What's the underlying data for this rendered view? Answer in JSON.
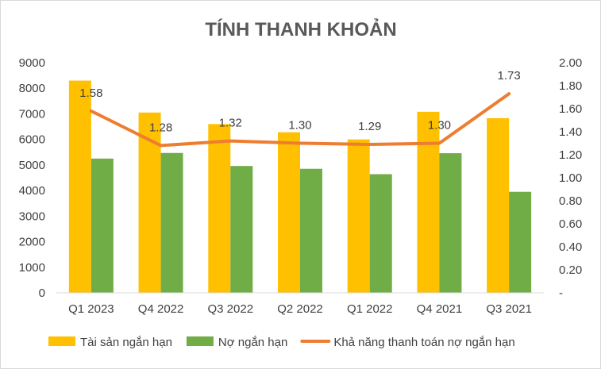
{
  "chart_data": {
    "type": "bar",
    "title": "TÍNH THANH KHOẢN",
    "categories": [
      "Q1 2023",
      "Q4 2022",
      "Q3 2022",
      "Q2 2022",
      "Q1 2022",
      "Q4 2021",
      "Q3 2021"
    ],
    "series": [
      {
        "name": "Tài sản ngắn hạn",
        "type": "bar",
        "axis": "left",
        "color": "#FFC000",
        "values": [
          8300,
          7050,
          6600,
          6280,
          6000,
          7080,
          6830
        ]
      },
      {
        "name": "Nợ ngắn hạn",
        "type": "bar",
        "axis": "left",
        "color": "#70AD47",
        "values": [
          5250,
          5470,
          4960,
          4850,
          4640,
          5460,
          3950
        ]
      },
      {
        "name": "Khả năng thanh toán nợ ngắn hạn",
        "type": "line",
        "axis": "right",
        "color": "#ED7D31",
        "values": [
          1.58,
          1.28,
          1.32,
          1.3,
          1.29,
          1.3,
          1.73
        ],
        "labels": [
          "1.58",
          "1.28",
          "1.32",
          "1.30",
          "1.29",
          "1.30",
          "1.73"
        ]
      }
    ],
    "y_left": {
      "min": 0,
      "max": 9000,
      "step": 1000,
      "ticks": [
        "0",
        "1000",
        "2000",
        "3000",
        "4000",
        "5000",
        "6000",
        "7000",
        "8000",
        "9000"
      ]
    },
    "y_right": {
      "min": 0,
      "max": 2.0,
      "step": 0.2,
      "ticks": [
        "-",
        "0.20",
        "0.40",
        "0.60",
        "0.80",
        "1.00",
        "1.20",
        "1.40",
        "1.60",
        "1.80",
        "2.00"
      ]
    },
    "grid": false,
    "legend": "bottom"
  }
}
